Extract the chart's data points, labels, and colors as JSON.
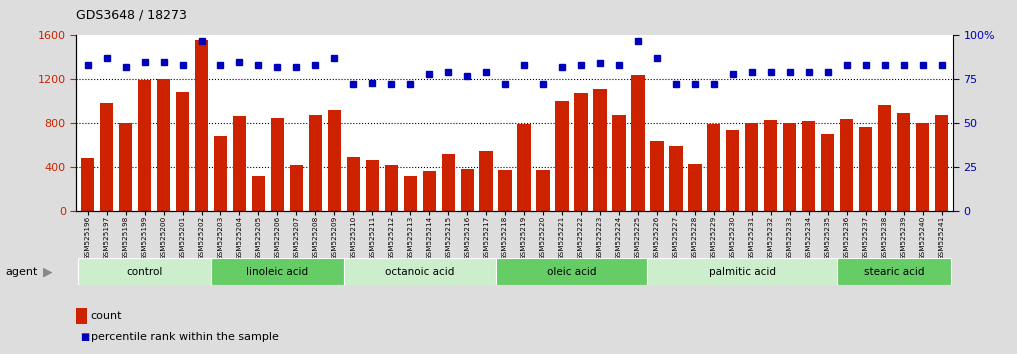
{
  "title": "GDS3648 / 18273",
  "samples": [
    "GSM525196",
    "GSM525197",
    "GSM525198",
    "GSM525199",
    "GSM525200",
    "GSM525201",
    "GSM525202",
    "GSM525203",
    "GSM525204",
    "GSM525205",
    "GSM525206",
    "GSM525207",
    "GSM525208",
    "GSM525209",
    "GSM525210",
    "GSM525211",
    "GSM525212",
    "GSM525213",
    "GSM525214",
    "GSM525215",
    "GSM525216",
    "GSM525217",
    "GSM525218",
    "GSM525219",
    "GSM525220",
    "GSM525221",
    "GSM525222",
    "GSM525223",
    "GSM525224",
    "GSM525225",
    "GSM525226",
    "GSM525227",
    "GSM525228",
    "GSM525229",
    "GSM525230",
    "GSM525231",
    "GSM525232",
    "GSM525233",
    "GSM525234",
    "GSM525235",
    "GSM525236",
    "GSM525237",
    "GSM525238",
    "GSM525239",
    "GSM525240",
    "GSM525241"
  ],
  "counts": [
    480,
    980,
    800,
    1190,
    1200,
    1080,
    1560,
    680,
    860,
    320,
    850,
    420,
    870,
    920,
    490,
    460,
    420,
    320,
    360,
    520,
    380,
    540,
    370,
    790,
    370,
    1000,
    1070,
    1110,
    870,
    1240,
    640,
    590,
    430,
    790,
    740,
    800,
    830,
    800,
    820,
    700,
    840,
    760,
    960,
    890,
    800,
    870
  ],
  "percentile_ranks": [
    83,
    87,
    82,
    85,
    85,
    83,
    97,
    83,
    85,
    83,
    82,
    82,
    83,
    87,
    72,
    73,
    72,
    72,
    78,
    79,
    77,
    79,
    72,
    83,
    72,
    82,
    83,
    84,
    83,
    97,
    87,
    72,
    72,
    72,
    78,
    79,
    79,
    79,
    79,
    79,
    83,
    83,
    83,
    83,
    83,
    83
  ],
  "groups": [
    {
      "name": "control",
      "start": 0,
      "end": 6,
      "color": "#cceecc"
    },
    {
      "name": "linoleic acid",
      "start": 7,
      "end": 13,
      "color": "#66cc66"
    },
    {
      "name": "octanoic acid",
      "start": 14,
      "end": 21,
      "color": "#cceecc"
    },
    {
      "name": "oleic acid",
      "start": 22,
      "end": 29,
      "color": "#66cc66"
    },
    {
      "name": "palmitic acid",
      "start": 30,
      "end": 39,
      "color": "#cceecc"
    },
    {
      "name": "stearic acid",
      "start": 40,
      "end": 45,
      "color": "#66cc66"
    }
  ],
  "bar_color": "#cc2200",
  "dot_color": "#0000bb",
  "ylim_left": [
    0,
    1600
  ],
  "ylim_right": [
    0,
    100
  ],
  "yticks_left": [
    0,
    400,
    800,
    1200,
    1600
  ],
  "yticks_right": [
    0,
    25,
    50,
    75,
    100
  ],
  "background_color": "#dddddd",
  "plot_bg_color": "#ffffff",
  "xtick_bg": "#cccccc"
}
